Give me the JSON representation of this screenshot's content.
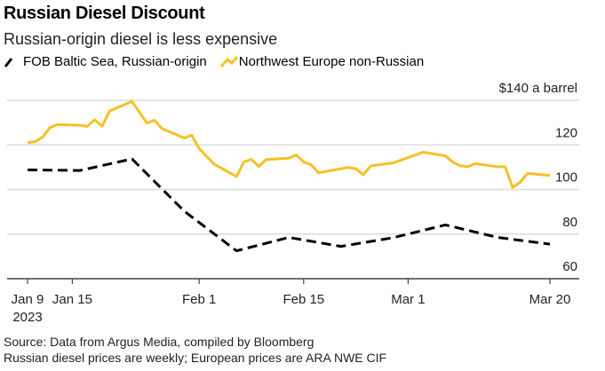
{
  "chart_data": {
    "type": "line",
    "title": "Russian Diesel Discount",
    "subtitle": "Russian-origin diesel is less expensive",
    "y_unit_label": "$140 a barrel",
    "ylim": [
      60,
      140
    ],
    "yticks": [
      60,
      80,
      100,
      120,
      140
    ],
    "ytick_labels": [
      "60",
      "80",
      "100",
      "120",
      "$140 a barrel"
    ],
    "xlim": [
      "2023-01-09",
      "2023-03-20"
    ],
    "xticks": [
      {
        "date": "2023-01-09",
        "label": "Jan 9",
        "sublabel": "2023"
      },
      {
        "date": "2023-01-15",
        "label": "Jan 15"
      },
      {
        "date": "2023-02-01",
        "label": "Feb 1"
      },
      {
        "date": "2023-02-15",
        "label": "Feb 15"
      },
      {
        "date": "2023-03-01",
        "label": "Mar 1"
      },
      {
        "date": "2023-03-20",
        "label": "Mar 20"
      }
    ],
    "grid": "horizontal",
    "legend": "top-left",
    "series": [
      {
        "name": "FOB Baltic Sea, Russian-origin",
        "color": "#000000",
        "style": "dashed",
        "points": [
          [
            "2023-01-09",
            108.8
          ],
          [
            "2023-01-16",
            108.5
          ],
          [
            "2023-01-23",
            113.7
          ],
          [
            "2023-01-30",
            90.3
          ],
          [
            "2023-02-06",
            72.5
          ],
          [
            "2023-02-13",
            78.5
          ],
          [
            "2023-02-20",
            74.5
          ],
          [
            "2023-02-27",
            78.4
          ],
          [
            "2023-03-06",
            84.1
          ],
          [
            "2023-03-13",
            78.5
          ],
          [
            "2023-03-20",
            75.5
          ]
        ]
      },
      {
        "name": "Northwest Europe non-Russian",
        "color": "#f5c027",
        "style": "solid",
        "points": [
          [
            "2023-01-09",
            121.0
          ],
          [
            "2023-01-10",
            121.4
          ],
          [
            "2023-01-11",
            123.4
          ],
          [
            "2023-01-12",
            127.8
          ],
          [
            "2023-01-13",
            129.1
          ],
          [
            "2023-01-16",
            128.8
          ],
          [
            "2023-01-17",
            128.3
          ],
          [
            "2023-01-18",
            131.3
          ],
          [
            "2023-01-19",
            128.4
          ],
          [
            "2023-01-20",
            135.2
          ],
          [
            "2023-01-23",
            139.5
          ],
          [
            "2023-01-25",
            129.8
          ],
          [
            "2023-01-26",
            131.0
          ],
          [
            "2023-01-27",
            127.4
          ],
          [
            "2023-01-30",
            123.1
          ],
          [
            "2023-01-31",
            124.3
          ],
          [
            "2023-02-01",
            118.4
          ],
          [
            "2023-02-02",
            114.8
          ],
          [
            "2023-02-03",
            111.4
          ],
          [
            "2023-02-06",
            105.8
          ],
          [
            "2023-02-07",
            112.4
          ],
          [
            "2023-02-08",
            113.5
          ],
          [
            "2023-02-09",
            110.4
          ],
          [
            "2023-02-10",
            113.4
          ],
          [
            "2023-02-13",
            114.0
          ],
          [
            "2023-02-14",
            115.5
          ],
          [
            "2023-02-15",
            112.4
          ],
          [
            "2023-02-16",
            111.1
          ],
          [
            "2023-02-17",
            107.5
          ],
          [
            "2023-02-21",
            109.9
          ],
          [
            "2023-02-22",
            109.3
          ],
          [
            "2023-02-23",
            106.6
          ],
          [
            "2023-02-24",
            110.6
          ],
          [
            "2023-02-27",
            111.9
          ],
          [
            "2023-02-28",
            113.1
          ],
          [
            "2023-03-01",
            114.3
          ],
          [
            "2023-03-02",
            115.5
          ],
          [
            "2023-03-03",
            116.8
          ],
          [
            "2023-03-06",
            115.1
          ],
          [
            "2023-03-07",
            112.2
          ],
          [
            "2023-03-08",
            110.6
          ],
          [
            "2023-03-09",
            110.2
          ],
          [
            "2023-03-10",
            111.6
          ],
          [
            "2023-03-13",
            110.2
          ],
          [
            "2023-03-14",
            110.2
          ],
          [
            "2023-03-15",
            100.9
          ],
          [
            "2023-03-16",
            103.2
          ],
          [
            "2023-03-17",
            107.3
          ],
          [
            "2023-03-20",
            106.3
          ]
        ]
      }
    ],
    "source": "Source: Data from Argus Media, compiled by Bloomberg",
    "note": "Russian diesel prices are weekly; European prices are ARA NWE CIF"
  }
}
